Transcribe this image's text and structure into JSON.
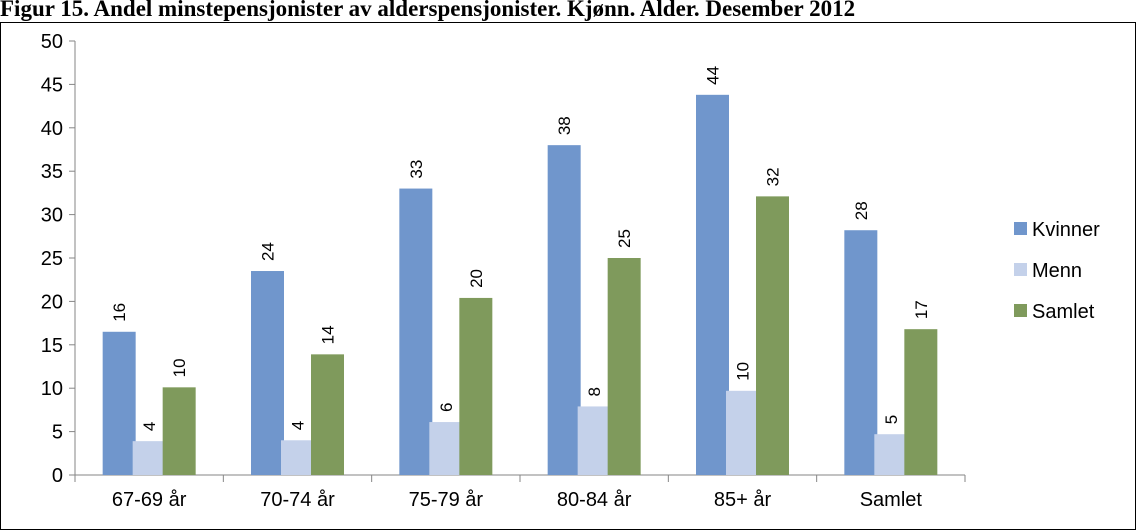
{
  "title": "Figur 15. Andel minstepensjonister av alderspensjonister. Kjønn. Alder. Desember 2012",
  "chart_data": {
    "type": "bar",
    "categories": [
      "67-69 år",
      "70-74 år",
      "75-79 år",
      "80-84 år",
      "85+ år",
      "Samlet"
    ],
    "series": [
      {
        "name": "Kvinner",
        "color": "#7096cc",
        "values": [
          16.5,
          23.5,
          33.0,
          38.0,
          43.8,
          28.2
        ],
        "labels": [
          "16",
          "24",
          "33",
          "38",
          "44",
          "28"
        ]
      },
      {
        "name": "Menn",
        "color": "#c4d1ea",
        "values": [
          3.9,
          4.0,
          6.1,
          7.9,
          9.7,
          4.7
        ],
        "labels": [
          "4",
          "4",
          "6",
          "8",
          "10",
          "5"
        ]
      },
      {
        "name": "Samlet",
        "color": "#7f9a5c",
        "values": [
          10.1,
          13.9,
          20.4,
          25.0,
          32.1,
          16.8
        ],
        "labels": [
          "10",
          "14",
          "20",
          "25",
          "32",
          "17"
        ]
      }
    ],
    "ylim": [
      0,
      50
    ],
    "yticks": [
      "0",
      "5",
      "10",
      "15",
      "20",
      "25",
      "30",
      "35",
      "40",
      "45",
      "50"
    ],
    "legend": "right"
  }
}
